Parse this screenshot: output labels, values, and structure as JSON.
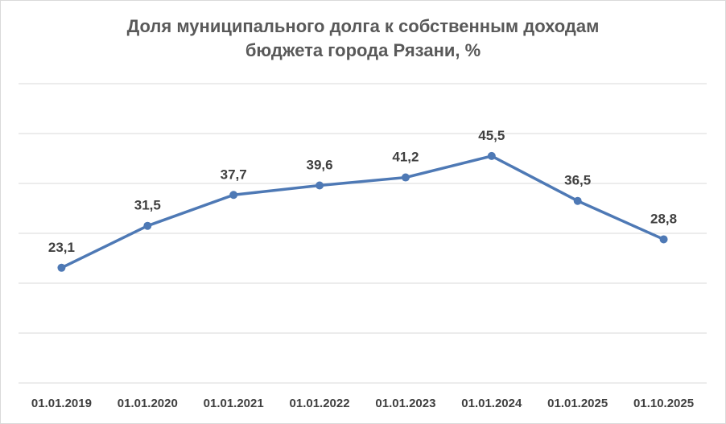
{
  "chart_data": {
    "type": "line",
    "title_line1": "Доля муниципального долга к собственным доходам",
    "title_line2": "бюджета города Рязани, %",
    "categories": [
      "01.01.2019",
      "01.01.2020",
      "01.01.2021",
      "01.01.2022",
      "01.01.2023",
      "01.01.2024",
      "01.01.2025",
      "01.10.2025"
    ],
    "series": [
      {
        "values": [
          23.1,
          31.5,
          37.7,
          39.6,
          41.2,
          45.5,
          36.5,
          28.8
        ],
        "labels": [
          "23,1",
          "31,5",
          "37,7",
          "39,6",
          "41,2",
          "45,5",
          "36,5",
          "28,8"
        ]
      }
    ],
    "ylim": [
      0,
      60
    ],
    "grid": true,
    "line_color": "#4e79b5"
  }
}
